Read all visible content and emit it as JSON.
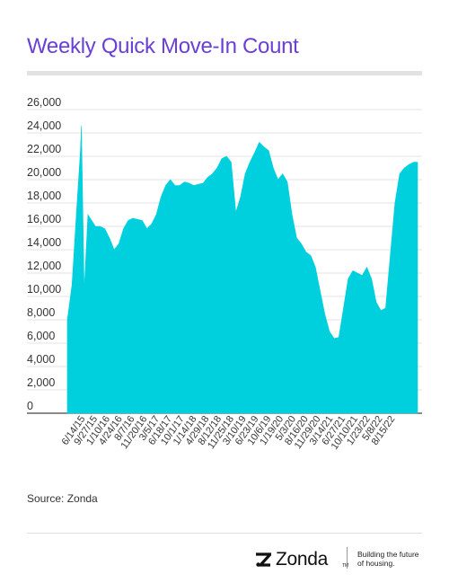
{
  "chart_data": {
    "type": "area",
    "title": "Weekly Quick Move-In Count",
    "source": "Source: Zonda",
    "color": "#00d0dd",
    "y_ticks": [
      "0",
      "2,000",
      "4,000",
      "6,000",
      "8,000",
      "10,000",
      "12,000",
      "14,000",
      "16,000",
      "18,000",
      "20,000",
      "22,000",
      "24,000",
      "26,000"
    ],
    "ylim": [
      0,
      26000
    ],
    "x_tick_labels": [
      "6/14/15",
      "9/27/15",
      "1/10/16",
      "4/24/16",
      "8/7/16",
      "11/20/16",
      "3/5/17",
      "6/18/17",
      "10/1/17",
      "1/14/18",
      "4/29/18",
      "8/12/18",
      "11/25/18",
      "3/10/19",
      "6/23/19",
      "10/6/19",
      "1/19/20",
      "5/3/20",
      "8/16/20",
      "11/29/20",
      "3/14/21",
      "6/27/21",
      "10/10/21",
      "1/23/22",
      "5/8/22",
      "8/15/22"
    ],
    "series": [
      {
        "x": [
          "6/14/15",
          "7/19/15",
          "8/23/15",
          "9/20/15",
          "9/27/15",
          "10/18/15",
          "11/15/15",
          "12/13/15",
          "1/10/16",
          "2/14/16",
          "3/20/16",
          "4/24/16",
          "5/29/16",
          "7/3/16",
          "8/7/16",
          "9/11/16",
          "10/16/16",
          "11/20/16",
          "12/25/16",
          "1/29/17",
          "3/5/17",
          "4/9/17",
          "5/14/17",
          "6/18/17",
          "7/23/17",
          "8/27/17",
          "10/1/17",
          "11/5/17",
          "12/10/17",
          "1/14/18",
          "2/18/18",
          "3/25/18",
          "4/29/18",
          "6/3/18",
          "7/8/18",
          "8/12/18",
          "9/16/18",
          "10/21/18",
          "11/25/18",
          "12/30/18",
          "2/3/19",
          "3/10/19",
          "4/14/19",
          "5/19/19",
          "6/23/19",
          "7/28/19",
          "9/1/19",
          "10/6/19",
          "11/10/19",
          "12/15/19",
          "1/19/20",
          "2/23/20",
          "3/29/20",
          "5/3/20",
          "6/7/20",
          "7/12/20",
          "8/16/20",
          "9/20/20",
          "10/25/20",
          "11/29/20",
          "1/3/21",
          "2/7/21",
          "3/14/21",
          "4/18/21",
          "5/23/21",
          "6/27/21",
          "8/1/21",
          "9/5/21",
          "10/10/21",
          "11/14/21",
          "12/19/21",
          "1/23/22",
          "2/27/22",
          "4/3/22",
          "5/8/22",
          "6/12/22",
          "7/17/22",
          "8/15/22"
        ],
        "y": [
          8000,
          11000,
          17500,
          22500,
          24600,
          10500,
          17000,
          16500,
          16000,
          16000,
          15800,
          15000,
          14000,
          14500,
          15800,
          16500,
          16700,
          16600,
          16500,
          15800,
          16200,
          17000,
          18500,
          19500,
          20000,
          19500,
          19500,
          19800,
          19700,
          19500,
          19600,
          19700,
          20200,
          20500,
          21000,
          21800,
          22000,
          21500,
          17200,
          18500,
          20500,
          21500,
          22300,
          23200,
          22800,
          22500,
          21000,
          20000,
          20500,
          19800,
          17000,
          15000,
          14500,
          13800,
          13500,
          12500,
          10500,
          8500,
          7000,
          6400,
          6500,
          9000,
          11500,
          12200,
          12000,
          11800,
          12500,
          11500,
          9500,
          8800,
          9000,
          13500,
          18000,
          20500,
          21000,
          21300,
          21500,
          21500
        ]
      }
    ]
  },
  "brand": {
    "name": "Zonda",
    "tm": "TM",
    "tagline_line1": "Building the future",
    "tagline_line2": "of housing."
  }
}
